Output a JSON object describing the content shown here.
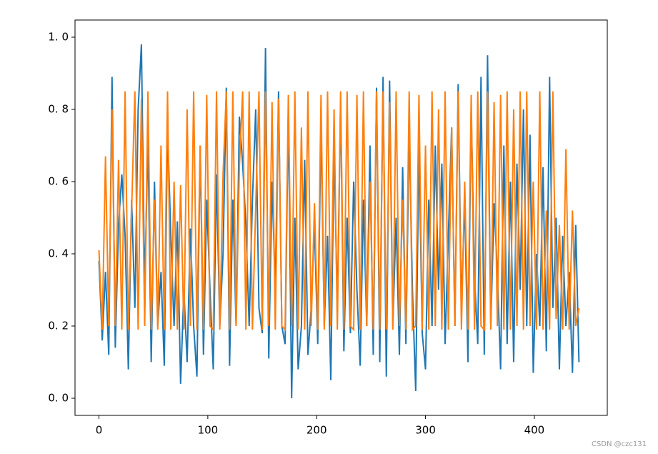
{
  "chart_data": {
    "type": "line",
    "x": [
      0,
      3,
      6,
      9,
      12,
      15,
      18,
      21,
      24,
      27,
      30,
      33,
      36,
      39,
      42,
      45,
      48,
      51,
      54,
      57,
      60,
      63,
      66,
      69,
      72,
      75,
      78,
      81,
      84,
      87,
      90,
      93,
      96,
      99,
      102,
      105,
      108,
      111,
      114,
      117,
      120,
      123,
      126,
      129,
      132,
      135,
      138,
      141,
      144,
      147,
      150,
      153,
      156,
      159,
      162,
      165,
      168,
      171,
      174,
      177,
      180,
      183,
      186,
      189,
      192,
      195,
      198,
      201,
      204,
      207,
      210,
      213,
      216,
      219,
      222,
      225,
      228,
      231,
      234,
      237,
      240,
      243,
      246,
      249,
      252,
      255,
      258,
      261,
      264,
      267,
      270,
      273,
      276,
      279,
      282,
      285,
      288,
      291,
      294,
      297,
      300,
      303,
      306,
      309,
      312,
      315,
      318,
      321,
      324,
      327,
      330,
      333,
      336,
      339,
      342,
      345,
      348,
      351,
      354,
      357,
      360,
      363,
      366,
      369,
      372,
      375,
      378,
      381,
      384,
      387,
      390,
      393,
      396,
      399,
      402,
      405,
      408,
      411,
      414,
      417,
      420,
      423,
      426,
      429,
      432,
      435,
      438,
      441
    ],
    "series": [
      {
        "color": "#1f77b4",
        "values": [
          0.38,
          0.16,
          0.35,
          0.12,
          0.89,
          0.14,
          0.48,
          0.62,
          0.45,
          0.08,
          0.55,
          0.25,
          0.8,
          0.98,
          0.3,
          0.72,
          0.1,
          0.6,
          0.2,
          0.35,
          0.09,
          0.75,
          0.45,
          0.2,
          0.49,
          0.04,
          0.3,
          0.1,
          0.47,
          0.2,
          0.06,
          0.7,
          0.12,
          0.55,
          0.3,
          0.08,
          0.62,
          0.2,
          0.4,
          0.86,
          0.09,
          0.55,
          0.2,
          0.78,
          0.65,
          0.48,
          0.2,
          0.55,
          0.8,
          0.25,
          0.18,
          0.97,
          0.11,
          0.6,
          0.3,
          0.85,
          0.2,
          0.15,
          0.8,
          0.0,
          0.5,
          0.08,
          0.2,
          0.66,
          0.12,
          0.25,
          0.48,
          0.15,
          0.76,
          0.2,
          0.45,
          0.05,
          0.7,
          0.25,
          0.82,
          0.13,
          0.5,
          0.18,
          0.6,
          0.3,
          0.09,
          0.55,
          0.2,
          0.7,
          0.12,
          0.86,
          0.1,
          0.89,
          0.06,
          0.88,
          0.2,
          0.5,
          0.12,
          0.64,
          0.15,
          0.75,
          0.3,
          0.02,
          0.7,
          0.18,
          0.08,
          0.55,
          0.2,
          0.7,
          0.3,
          0.65,
          0.15,
          0.45,
          0.75,
          0.2,
          0.87,
          0.25,
          0.55,
          0.1,
          0.8,
          0.34,
          0.15,
          0.89,
          0.12,
          0.95,
          0.2,
          0.54,
          0.35,
          0.08,
          0.7,
          0.15,
          0.6,
          0.1,
          0.65,
          0.3,
          0.8,
          0.2,
          0.73,
          0.07,
          0.4,
          0.2,
          0.64,
          0.13,
          0.89,
          0.25,
          0.5,
          0.08,
          0.45,
          0.2,
          0.35,
          0.07,
          0.48,
          0.1
        ]
      },
      {
        "color": "#ff7f0e",
        "values": [
          0.41,
          0.19,
          0.67,
          0.2,
          0.8,
          0.2,
          0.66,
          0.19,
          0.85,
          0.19,
          0.52,
          0.85,
          0.19,
          0.83,
          0.2,
          0.85,
          0.19,
          0.55,
          0.19,
          0.7,
          0.19,
          0.85,
          0.19,
          0.6,
          0.19,
          0.59,
          0.19,
          0.8,
          0.2,
          0.85,
          0.19,
          0.7,
          0.19,
          0.84,
          0.2,
          0.19,
          0.85,
          0.19,
          0.62,
          0.85,
          0.19,
          0.85,
          0.2,
          0.64,
          0.85,
          0.19,
          0.85,
          0.19,
          0.53,
          0.85,
          0.19,
          0.85,
          0.2,
          0.82,
          0.19,
          0.83,
          0.2,
          0.19,
          0.84,
          0.2,
          0.85,
          0.19,
          0.75,
          0.19,
          0.85,
          0.2,
          0.54,
          0.19,
          0.84,
          0.19,
          0.85,
          0.2,
          0.8,
          0.19,
          0.85,
          0.19,
          0.85,
          0.2,
          0.19,
          0.84,
          0.19,
          0.85,
          0.2,
          0.6,
          0.19,
          0.85,
          0.19,
          0.85,
          0.19,
          0.82,
          0.19,
          0.85,
          0.2,
          0.55,
          0.19,
          0.85,
          0.19,
          0.2,
          0.84,
          0.19,
          0.7,
          0.19,
          0.85,
          0.2,
          0.8,
          0.19,
          0.85,
          0.19,
          0.75,
          0.2,
          0.85,
          0.19,
          0.6,
          0.19,
          0.84,
          0.19,
          0.85,
          0.2,
          0.19,
          0.85,
          0.19,
          0.82,
          0.2,
          0.84,
          0.19,
          0.85,
          0.19,
          0.8,
          0.2,
          0.85,
          0.19,
          0.85,
          0.2,
          0.6,
          0.19,
          0.85,
          0.19,
          0.52,
          0.19,
          0.85,
          0.22,
          0.48,
          0.19,
          0.69,
          0.19,
          0.52,
          0.2,
          0.25
        ]
      }
    ],
    "xlim": [
      -22,
      467
    ],
    "xticks": [
      0,
      100,
      200,
      300,
      400
    ],
    "ylim": [
      -0.0475,
      1.0475
    ],
    "yticks": [
      {
        "value": 0,
        "label": "0. 0"
      },
      {
        "value": 0.2,
        "label": "0. 2"
      },
      {
        "value": 0.4,
        "label": "0. 4"
      },
      {
        "value": 0.6,
        "label": "0. 6"
      },
      {
        "value": 0.8,
        "label": "0. 8"
      },
      {
        "value": 1.0,
        "label": "1. 0"
      }
    ],
    "watermark": "CSDN @czc131"
  }
}
